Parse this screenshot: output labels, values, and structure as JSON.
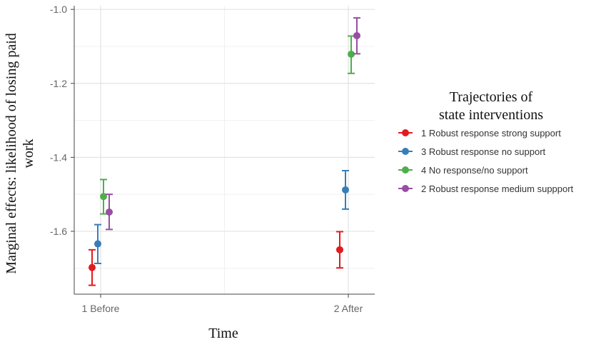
{
  "chart_data": {
    "type": "scatter",
    "subtype": "point-errorbar",
    "xlabel": "Time",
    "ylabel_lines": [
      "Marginal effects: likelihood of losing paid",
      "work"
    ],
    "categories": [
      "1 Before",
      "2 After"
    ],
    "ylim": [
      -1.77,
      -0.99
    ],
    "yticks": [
      -1.0,
      -1.2,
      -1.4,
      -1.6
    ],
    "ytick_labels": [
      "-1.0",
      "-1.2",
      "-1.4",
      "-1.6"
    ],
    "grid": true,
    "legend": {
      "title_lines": [
        "Trajectories of",
        "state interventions"
      ],
      "placement": "right"
    },
    "series": [
      {
        "name": "1 Robust response strong support",
        "color": "#e41a1c",
        "points": [
          {
            "category": "1 Before",
            "y": -1.698,
            "lower": -1.746,
            "upper": -1.65
          },
          {
            "category": "2 After",
            "y": -1.65,
            "lower": -1.699,
            "upper": -1.601
          }
        ]
      },
      {
        "name": "3 Robust response no support",
        "color": "#377eb8",
        "points": [
          {
            "category": "1 Before",
            "y": -1.634,
            "lower": -1.687,
            "upper": -1.582
          },
          {
            "category": "2 After",
            "y": -1.488,
            "lower": -1.54,
            "upper": -1.436
          }
        ]
      },
      {
        "name": "4 No response/no support",
        "color": "#4daf4a",
        "points": [
          {
            "category": "1 Before",
            "y": -1.506,
            "lower": -1.553,
            "upper": -1.46
          },
          {
            "category": "2 After",
            "y": -1.121,
            "lower": -1.173,
            "upper": -1.072
          }
        ]
      },
      {
        "name": "2 Robust response medium suppport",
        "color": "#984ea3",
        "points": [
          {
            "category": "1 Before",
            "y": -1.548,
            "lower": -1.595,
            "upper": -1.5
          },
          {
            "category": "2 After",
            "y": -1.071,
            "lower": -1.12,
            "upper": -1.023
          }
        ]
      }
    ]
  }
}
